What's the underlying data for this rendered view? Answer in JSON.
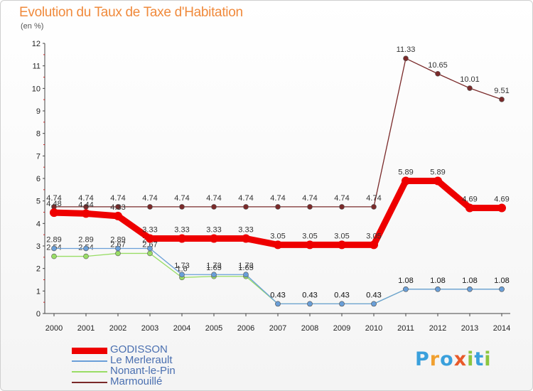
{
  "chart_data": {
    "type": "line",
    "title": "Evolution du Taux de Taxe d'Habitation",
    "subtitle": "(en %)",
    "ylim": [
      0,
      12
    ],
    "y_ticks": [
      "0",
      "1",
      "2",
      "3",
      "4",
      "5",
      "6",
      "7",
      "8",
      "9",
      "10",
      "11",
      "12"
    ],
    "x": [
      "2000",
      "2001",
      "2002",
      "2003",
      "2004",
      "2005",
      "2006",
      "2007",
      "2008",
      "2009",
      "2010",
      "2011",
      "2012",
      "2013",
      "2014"
    ],
    "grid": false,
    "legend_position": "bottom-left",
    "series": [
      {
        "name": "Marmouillé",
        "color": "#7a2a2a",
        "values": [
          4.74,
          4.74,
          4.74,
          4.74,
          4.74,
          4.74,
          4.74,
          4.74,
          4.74,
          4.74,
          4.74,
          11.33,
          10.65,
          10.01,
          9.51
        ],
        "labels": [
          "4.74",
          "4.74",
          "4.74",
          "4.74",
          "4.74",
          "4.74",
          "4.74",
          "4.74",
          "4.74",
          "4.74",
          "4.74",
          "11.33",
          "10.65",
          "10.01",
          "9.51"
        ]
      },
      {
        "name": "Nonant-le-Pin",
        "color": "#99dd66",
        "values": [
          2.54,
          2.54,
          2.67,
          2.67,
          1.6,
          1.65,
          1.65,
          0.43,
          0.43,
          0.43,
          0.43,
          1.08,
          1.08,
          1.08,
          1.08
        ],
        "labels": [
          "2.54",
          "2.54",
          "2.67",
          "2.67",
          "1.6",
          "1.65",
          "1.65",
          "0.43",
          "0.43",
          "0.43",
          "0.43",
          "1.08",
          "1.08",
          "1.08",
          "1.08"
        ]
      },
      {
        "name": "Le Merlerault",
        "color": "#6a9fd8",
        "values": [
          2.89,
          2.89,
          2.89,
          2.89,
          1.73,
          1.73,
          1.73,
          0.43,
          0.43,
          0.43,
          0.43,
          1.08,
          1.08,
          1.08,
          1.08
        ],
        "labels": [
          "2.89",
          "2.89",
          "2.89",
          "2.89",
          "1.73",
          "1.73",
          "1.73",
          "0.43",
          "0.43",
          "0.43",
          "0.43",
          "1.08",
          "1.08",
          "1.08",
          "1.08"
        ]
      },
      {
        "name": "GODISSON",
        "color": "#ee0000",
        "values": [
          4.48,
          4.44,
          4.33,
          3.33,
          3.33,
          3.33,
          3.33,
          3.05,
          3.05,
          3.05,
          3.05,
          5.89,
          5.89,
          4.69,
          4.69
        ],
        "labels": [
          "4.48",
          "4.44",
          "4.33",
          "3.33",
          "3.33",
          "3.33",
          "3.33",
          "3.05",
          "3.05",
          "3.05",
          "3.05",
          "5.89",
          "5.89",
          "4.69",
          "4.69"
        ]
      }
    ]
  },
  "legend": [
    {
      "name": "GODISSON",
      "color": "#ee0000"
    },
    {
      "name": "Le Merlerault",
      "color": "#6a9fd8"
    },
    {
      "name": "Nonant-le-Pin",
      "color": "#99dd66"
    },
    {
      "name": "Marmouillé",
      "color": "#7a2a2a"
    }
  ],
  "brand": {
    "text": "Proxiti",
    "letters": [
      "P",
      "r",
      "o",
      "x",
      "i",
      "t",
      "i"
    ],
    "colors": [
      "#3aa0dc",
      "#f0a030",
      "#3aa0dc",
      "#e85a2a",
      "#8cc63f",
      "#3aa0dc",
      "#8cc63f"
    ]
  }
}
